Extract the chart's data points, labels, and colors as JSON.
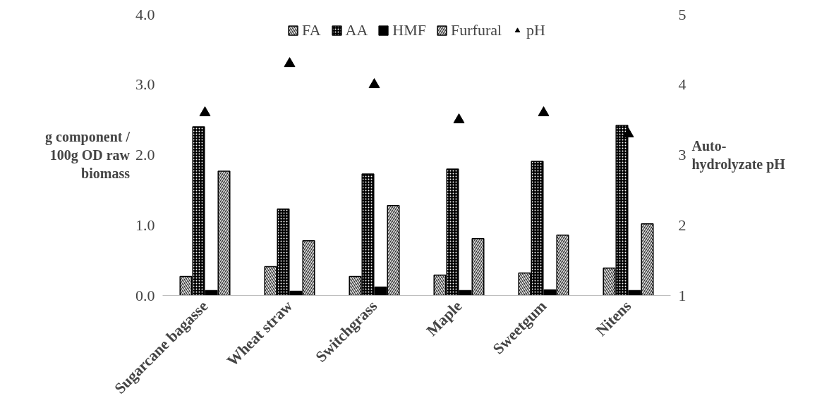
{
  "chart_data": {
    "type": "bar",
    "ylabel": "g component / 100g OD raw biomass",
    "y2label": "Auto-hydrolyzate pH",
    "categories": [
      "Sugarcane bagasse",
      "Wheat straw",
      "Switchgrass",
      "Maple",
      "Sweetgum",
      "Nitens"
    ],
    "series": [
      {
        "name": "FA",
        "color": "#eeeeee",
        "values": [
          0.27,
          0.41,
          0.27,
          0.29,
          0.32,
          0.39
        ]
      },
      {
        "name": "AA",
        "color": "#000000",
        "values": [
          2.4,
          1.23,
          1.73,
          1.8,
          1.91,
          2.42
        ]
      },
      {
        "name": "HMF",
        "color": "#000000",
        "values": [
          0.07,
          0.06,
          0.12,
          0.07,
          0.08,
          0.07
        ]
      },
      {
        "name": "Furfural",
        "color": "#eeeeee",
        "values": [
          1.77,
          0.78,
          1.28,
          0.81,
          0.86,
          1.02
        ]
      },
      {
        "name": "pH",
        "type": "scatter",
        "axis": "y2",
        "marker": "triangle",
        "color": "#000000",
        "values": [
          3.6,
          4.3,
          4.0,
          3.5,
          3.6,
          3.3
        ]
      }
    ],
    "ylim": [
      0,
      4
    ],
    "yticks": [
      {
        "value": 0,
        "label": "0.0"
      },
      {
        "value": 1,
        "label": "1.0"
      },
      {
        "value": 2,
        "label": "2.0"
      },
      {
        "value": 3,
        "label": "3.0"
      },
      {
        "value": 4,
        "label": "4.0"
      }
    ],
    "y2lim": [
      1,
      5
    ],
    "y2ticks": [
      1,
      2,
      3,
      4,
      5
    ],
    "grid": false,
    "legend": "top"
  }
}
